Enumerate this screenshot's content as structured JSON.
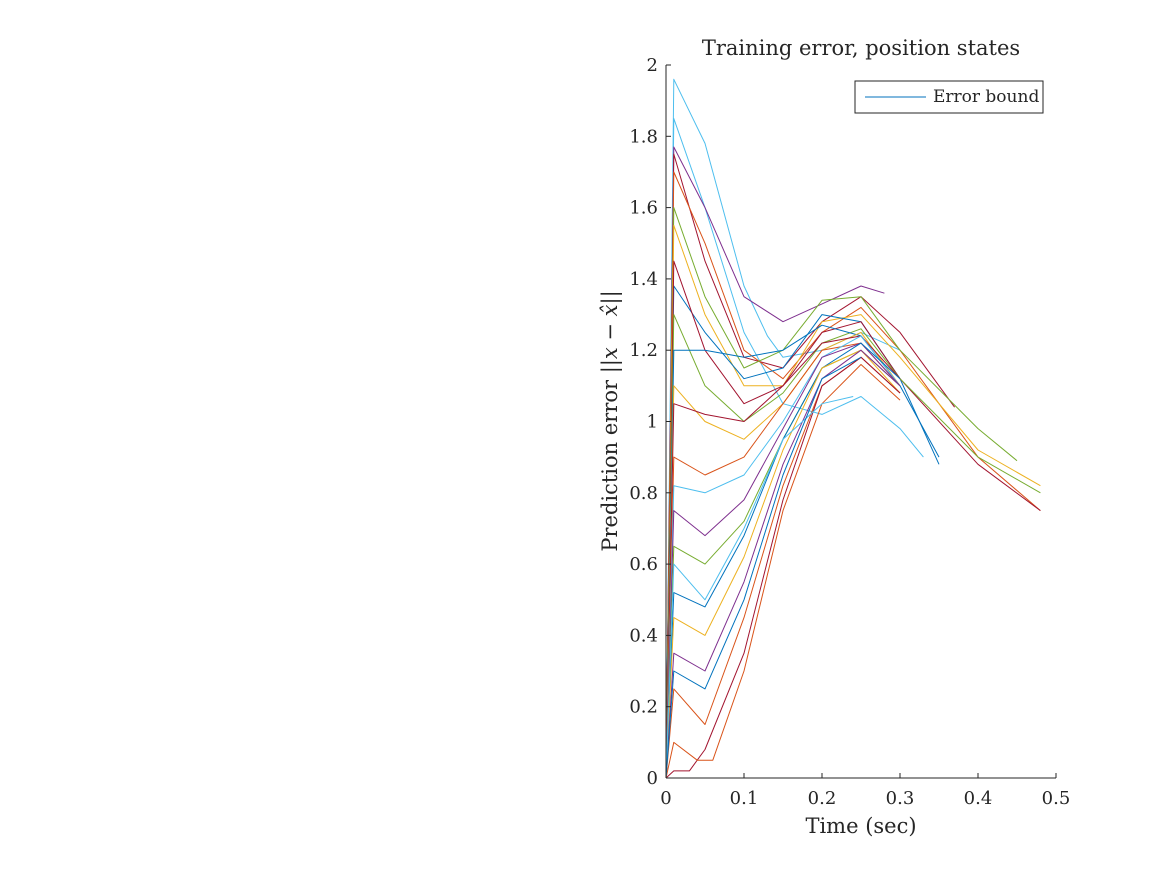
{
  "chart_data": {
    "type": "line",
    "title": "Training error, position states",
    "xlabel": "Time (sec)",
    "ylabel_prefix": "Prediction error ",
    "ylabel_math": "||x − x̂||",
    "xlim": [
      0,
      0.5
    ],
    "ylim": [
      0,
      2
    ],
    "xticks": [
      0,
      0.1,
      0.2,
      0.3,
      0.4,
      0.5
    ],
    "yticks": [
      0,
      0.2,
      0.4,
      0.6,
      0.8,
      1,
      1.2,
      1.4,
      1.6,
      1.8,
      2
    ],
    "xtick_labels": [
      "0",
      "0.1",
      "0.2",
      "0.3",
      "0.4",
      "0.5"
    ],
    "ytick_labels": [
      "0",
      "0.2",
      "0.4",
      "0.6",
      "0.8",
      "1",
      "1.2",
      "1.4",
      "1.6",
      "1.8",
      "2"
    ],
    "grid": false,
    "legend": {
      "placement": "top-right",
      "entries": [
        "Error bound"
      ]
    },
    "palette": [
      "#0072BD",
      "#D95319",
      "#EDB120",
      "#7E2F8E",
      "#77AC30",
      "#4DBEEE",
      "#A2142F"
    ],
    "series": [
      {
        "color": "#4DBEEE",
        "x": [
          0,
          0.01,
          0.05,
          0.1,
          0.13,
          0.15,
          0.2,
          0.25,
          0.3
        ],
        "y": [
          0,
          1.96,
          1.78,
          1.38,
          1.24,
          1.18,
          1.2,
          1.25,
          1.2
        ]
      },
      {
        "color": "#4DBEEE",
        "x": [
          0,
          0.01,
          0.05,
          0.1,
          0.15,
          0.2,
          0.25,
          0.3,
          0.33
        ],
        "y": [
          0,
          1.85,
          1.6,
          1.25,
          1.05,
          1.02,
          1.07,
          0.98,
          0.9
        ]
      },
      {
        "color": "#7E2F8E",
        "x": [
          0,
          0.01,
          0.05,
          0.1,
          0.15,
          0.2,
          0.25,
          0.28
        ],
        "y": [
          0,
          1.77,
          1.6,
          1.35,
          1.28,
          1.33,
          1.38,
          1.36
        ]
      },
      {
        "color": "#A2142F",
        "x": [
          0,
          0.01,
          0.05,
          0.1,
          0.15,
          0.2,
          0.25,
          0.3,
          0.37
        ],
        "y": [
          0,
          1.75,
          1.45,
          1.18,
          1.15,
          1.28,
          1.35,
          1.25,
          1.04
        ]
      },
      {
        "color": "#D95319",
        "x": [
          0,
          0.01,
          0.05,
          0.1,
          0.15,
          0.2,
          0.25,
          0.3,
          0.4,
          0.48
        ],
        "y": [
          0,
          1.7,
          1.5,
          1.2,
          1.12,
          1.25,
          1.32,
          1.2,
          0.9,
          0.75
        ]
      },
      {
        "color": "#77AC30",
        "x": [
          0,
          0.01,
          0.05,
          0.1,
          0.15,
          0.2,
          0.25,
          0.3,
          0.4,
          0.45
        ],
        "y": [
          0,
          1.6,
          1.35,
          1.15,
          1.2,
          1.34,
          1.35,
          1.2,
          0.98,
          0.89
        ]
      },
      {
        "color": "#EDB120",
        "x": [
          0,
          0.01,
          0.05,
          0.1,
          0.15,
          0.2,
          0.25,
          0.3,
          0.4,
          0.48
        ],
        "y": [
          0,
          1.55,
          1.3,
          1.1,
          1.1,
          1.28,
          1.3,
          1.18,
          0.92,
          0.82
        ]
      },
      {
        "color": "#0072BD",
        "x": [
          0,
          0.01,
          0.05,
          0.1,
          0.15,
          0.2,
          0.25,
          0.3,
          0.35
        ],
        "y": [
          0,
          1.38,
          1.25,
          1.12,
          1.15,
          1.3,
          1.28,
          1.12,
          0.88
        ]
      },
      {
        "color": "#A2142F",
        "x": [
          0,
          0.01,
          0.05,
          0.1,
          0.15,
          0.2,
          0.25,
          0.3,
          0.4,
          0.48
        ],
        "y": [
          0,
          1.45,
          1.2,
          1.05,
          1.1,
          1.25,
          1.28,
          1.12,
          0.88,
          0.75
        ]
      },
      {
        "color": "#77AC30",
        "x": [
          0,
          0.01,
          0.05,
          0.1,
          0.15,
          0.2,
          0.25,
          0.3,
          0.4,
          0.48
        ],
        "y": [
          0,
          1.3,
          1.1,
          1.0,
          1.08,
          1.22,
          1.26,
          1.12,
          0.9,
          0.8
        ]
      },
      {
        "color": "#0072BD",
        "x": [
          0,
          0.01,
          0.05,
          0.1,
          0.15,
          0.2,
          0.25,
          0.3,
          0.35
        ],
        "y": [
          0,
          1.2,
          1.2,
          1.18,
          1.2,
          1.27,
          1.24,
          1.1,
          0.9
        ]
      },
      {
        "color": "#EDB120",
        "x": [
          0,
          0.01,
          0.05,
          0.1,
          0.15,
          0.2,
          0.25,
          0.3
        ],
        "y": [
          0,
          1.1,
          1.0,
          0.95,
          1.05,
          1.2,
          1.25,
          1.1
        ]
      },
      {
        "color": "#A2142F",
        "x": [
          0,
          0.01,
          0.05,
          0.1,
          0.15,
          0.2,
          0.25,
          0.3
        ],
        "y": [
          0,
          1.05,
          1.02,
          1.0,
          1.1,
          1.22,
          1.24,
          1.12
        ]
      },
      {
        "color": "#D95319",
        "x": [
          0,
          0.01,
          0.05,
          0.1,
          0.15,
          0.2,
          0.25,
          0.3
        ],
        "y": [
          0,
          0.9,
          0.85,
          0.9,
          1.05,
          1.2,
          1.22,
          1.1
        ]
      },
      {
        "color": "#4DBEEE",
        "x": [
          0,
          0.01,
          0.05,
          0.1,
          0.15,
          0.2,
          0.25,
          0.3
        ],
        "y": [
          0,
          0.82,
          0.8,
          0.85,
          1.0,
          1.18,
          1.24,
          1.1
        ]
      },
      {
        "color": "#7E2F8E",
        "x": [
          0,
          0.01,
          0.05,
          0.1,
          0.15,
          0.2,
          0.25,
          0.3
        ],
        "y": [
          0,
          0.75,
          0.68,
          0.78,
          0.98,
          1.18,
          1.22,
          1.1
        ]
      },
      {
        "color": "#77AC30",
        "x": [
          0,
          0.01,
          0.05,
          0.1,
          0.15,
          0.2,
          0.25,
          0.3
        ],
        "y": [
          0,
          0.65,
          0.6,
          0.72,
          0.95,
          1.15,
          1.2,
          1.1
        ]
      },
      {
        "color": "#0072BD",
        "x": [
          0,
          0.01,
          0.05,
          0.1,
          0.15,
          0.2,
          0.25,
          0.3
        ],
        "y": [
          0,
          0.52,
          0.48,
          0.68,
          0.95,
          1.15,
          1.22,
          1.12
        ]
      },
      {
        "color": "#EDB120",
        "x": [
          0,
          0.01,
          0.05,
          0.1,
          0.15,
          0.2,
          0.25,
          0.3
        ],
        "y": [
          0,
          0.45,
          0.4,
          0.62,
          0.92,
          1.15,
          1.2,
          1.08
        ]
      },
      {
        "color": "#7E2F8E",
        "x": [
          0,
          0.01,
          0.05,
          0.1,
          0.15,
          0.2,
          0.25,
          0.3
        ],
        "y": [
          0,
          0.35,
          0.3,
          0.55,
          0.88,
          1.12,
          1.2,
          1.1
        ]
      },
      {
        "color": "#D95319",
        "x": [
          0,
          0.01,
          0.05,
          0.1,
          0.15,
          0.2,
          0.25,
          0.3
        ],
        "y": [
          0,
          0.25,
          0.15,
          0.45,
          0.82,
          1.1,
          1.18,
          1.08
        ]
      },
      {
        "color": "#A2142F",
        "x": [
          0,
          0.01,
          0.03,
          0.05,
          0.1,
          0.15,
          0.2,
          0.25,
          0.3
        ],
        "y": [
          0,
          0.02,
          0.02,
          0.08,
          0.35,
          0.78,
          1.1,
          1.18,
          1.08
        ]
      },
      {
        "color": "#D95319",
        "x": [
          0,
          0.01,
          0.04,
          0.06,
          0.1,
          0.15,
          0.2,
          0.25,
          0.3
        ],
        "y": [
          0,
          0.1,
          0.05,
          0.05,
          0.3,
          0.75,
          1.05,
          1.16,
          1.06
        ]
      },
      {
        "color": "#4DBEEE",
        "x": [
          0,
          0.01,
          0.05,
          0.1,
          0.15,
          0.2,
          0.24
        ],
        "y": [
          0,
          0.6,
          0.5,
          0.7,
          0.95,
          1.05,
          1.07
        ]
      },
      {
        "color": "#0072BD",
        "x": [
          0,
          0.01,
          0.05,
          0.1,
          0.15,
          0.2,
          0.25
        ],
        "y": [
          0,
          0.3,
          0.25,
          0.5,
          0.85,
          1.12,
          1.18
        ]
      }
    ]
  }
}
